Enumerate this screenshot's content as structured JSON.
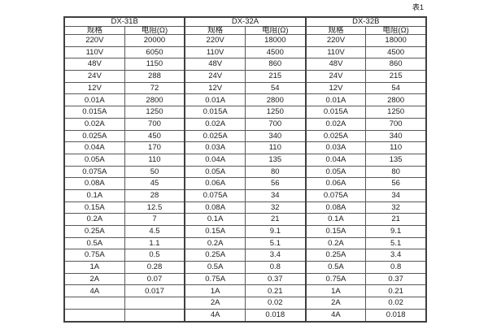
{
  "page": {
    "caption": "表1"
  },
  "table": {
    "groups": [
      {
        "name": "DX-31B",
        "spec_header": "规格",
        "res_header": "电阻(Ω)"
      },
      {
        "name": "DX-32A",
        "spec_header": "规格",
        "res_header": "电阻(Ω)"
      },
      {
        "name": "DX-32B",
        "spec_header": "规格",
        "res_header": "电阻(Ω)"
      }
    ],
    "rows": [
      [
        "220V",
        "20000",
        "220V",
        "18000",
        "220V",
        "18000"
      ],
      [
        "110V",
        "6050",
        "110V",
        "4500",
        "110V",
        "4500"
      ],
      [
        "48V",
        "1150",
        "48V",
        "860",
        "48V",
        "860"
      ],
      [
        "24V",
        "288",
        "24V",
        "215",
        "24V",
        "215"
      ],
      [
        "12V",
        "72",
        "12V",
        "54",
        "12V",
        "54"
      ],
      [
        "0.01A",
        "2800",
        "0.01A",
        "2800",
        "0.01A",
        "2800"
      ],
      [
        "0.015A",
        "1250",
        "0.015A",
        "1250",
        "0.015A",
        "1250"
      ],
      [
        "0.02A",
        "700",
        "0.02A",
        "700",
        "0.02A",
        "700"
      ],
      [
        "0.025A",
        "450",
        "0.025A",
        "340",
        "0.025A",
        "340"
      ],
      [
        "0.04A",
        "170",
        "0.03A",
        "110",
        "0.03A",
        "110"
      ],
      [
        "0.05A",
        "110",
        "0.04A",
        "135",
        "0.04A",
        "135"
      ],
      [
        "0.075A",
        "50",
        "0.05A",
        "80",
        "0.05A",
        "80"
      ],
      [
        "0.08A",
        "45",
        "0.06A",
        "56",
        "0.06A",
        "56"
      ],
      [
        "0.1A",
        "28",
        "0.075A",
        "34",
        "0.075A",
        "34"
      ],
      [
        "0.15A",
        "12.5",
        "0.08A",
        "32",
        "0.08A",
        "32"
      ],
      [
        "0.2A",
        "7",
        "0.1A",
        "21",
        "0.1A",
        "21"
      ],
      [
        "0.25A",
        "4.5",
        "0.15A",
        "9.1",
        "0.15A",
        "9.1"
      ],
      [
        "0.5A",
        "1.1",
        "0.2A",
        "5.1",
        "0.2A",
        "5.1"
      ],
      [
        "0.75A",
        "0.5",
        "0.25A",
        "3.4",
        "0.25A",
        "3.4"
      ],
      [
        "1A",
        "0.28",
        "0.5A",
        "0.8",
        "0.5A",
        "0.8"
      ],
      [
        "2A",
        "0.07",
        "0.75A",
        "0.37",
        "0.75A",
        "0.37"
      ],
      [
        "4A",
        "0.017",
        "1A",
        "0.21",
        "1A",
        "0.21"
      ],
      [
        "",
        "",
        "2A",
        "0.02",
        "2A",
        "0.02"
      ],
      [
        "",
        "",
        "4A",
        "0.018",
        "4A",
        "0.018"
      ]
    ]
  }
}
